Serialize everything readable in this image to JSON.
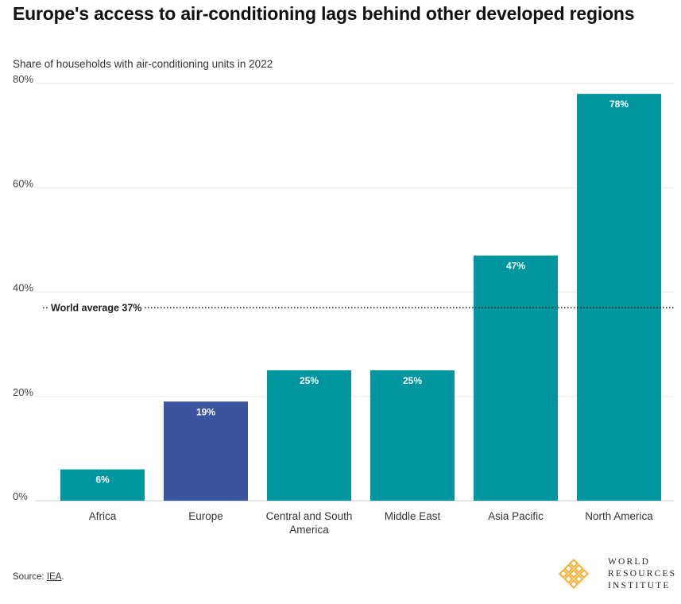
{
  "title": "Europe's access to air-conditioning lags behind other developed regions",
  "subtitle": "Share of households with air-conditioning units in 2022",
  "source": {
    "prefix": "Source: ",
    "link": "IEA",
    "suffix": "."
  },
  "logo": {
    "line1": "WORLD",
    "line2": "RESOURCES",
    "line3": "INSTITUTE"
  },
  "colors": {
    "bar": "#0096a0",
    "highlight": "#3a54a0",
    "logo": "#f2b33d",
    "grid": "#e6e6e6"
  },
  "chart_data": {
    "type": "bar",
    "categories": [
      "Africa",
      "Europe",
      "Central and South America",
      "Middle East",
      "Asia Pacific",
      "North America"
    ],
    "category_lines": [
      [
        "Africa"
      ],
      [
        "Europe"
      ],
      [
        "Central and South",
        "America"
      ],
      [
        "Middle East"
      ],
      [
        "Asia Pacific"
      ],
      [
        "North America"
      ]
    ],
    "values": [
      6,
      19,
      25,
      25,
      47,
      78
    ],
    "data_labels": [
      "6%",
      "19%",
      "25%",
      "25%",
      "47%",
      "78%"
    ],
    "highlight_index": 1,
    "ylim": [
      0,
      80
    ],
    "yticks": [
      0,
      20,
      40,
      60,
      80
    ],
    "ytick_labels": [
      "0%",
      "20%",
      "40%",
      "60%",
      "80%"
    ],
    "reference_line": {
      "value": 37,
      "label": "World average 37%"
    },
    "grid": true
  }
}
